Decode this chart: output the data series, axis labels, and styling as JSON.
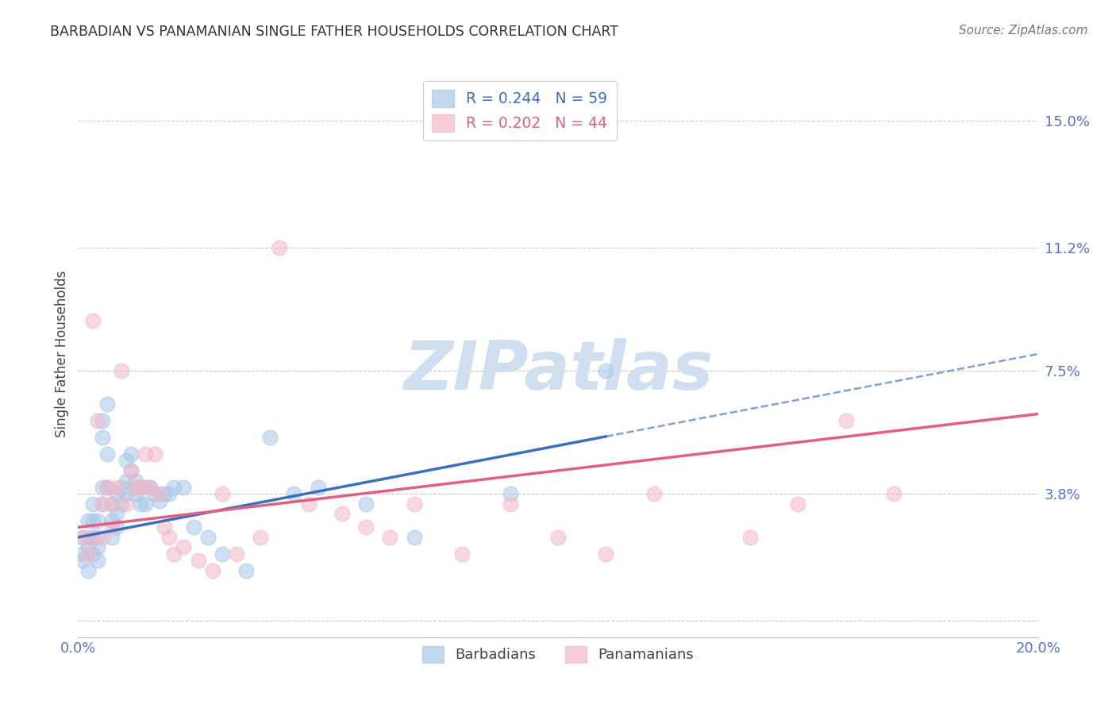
{
  "title": "BARBADIAN VS PANAMANIAN SINGLE FATHER HOUSEHOLDS CORRELATION CHART",
  "source": "Source: ZipAtlas.com",
  "ylabel": "Single Father Households",
  "xlim": [
    0.0,
    0.2
  ],
  "ylim": [
    -0.005,
    0.165
  ],
  "yticks": [
    0.0,
    0.038,
    0.075,
    0.112,
    0.15
  ],
  "ytick_labels": [
    "",
    "3.8%",
    "7.5%",
    "11.2%",
    "15.0%"
  ],
  "xticks": [
    0.0,
    0.05,
    0.1,
    0.15,
    0.2
  ],
  "xtick_labels": [
    "0.0%",
    "",
    "",
    "",
    "20.0%"
  ],
  "barbadian_R": 0.244,
  "barbadian_N": 59,
  "panamanian_R": 0.202,
  "panamanian_N": 44,
  "barbadian_color": "#a8c8e8",
  "panamanian_color": "#f4b8c8",
  "trendline_barbadian_color": "#3a6fbc",
  "trendline_panamanian_color": "#e06080",
  "watermark_color": "#d0dff0",
  "background_color": "#ffffff",
  "grid_color": "#c8c8c8",
  "axis_label_color": "#5575cc",
  "title_color": "#333333",
  "barbadian_x": [
    0.001,
    0.001,
    0.001,
    0.002,
    0.002,
    0.002,
    0.002,
    0.003,
    0.003,
    0.003,
    0.003,
    0.004,
    0.004,
    0.004,
    0.004,
    0.005,
    0.005,
    0.005,
    0.005,
    0.006,
    0.006,
    0.006,
    0.007,
    0.007,
    0.007,
    0.008,
    0.008,
    0.008,
    0.009,
    0.009,
    0.01,
    0.01,
    0.01,
    0.011,
    0.011,
    0.012,
    0.012,
    0.013,
    0.013,
    0.014,
    0.014,
    0.015,
    0.016,
    0.017,
    0.018,
    0.019,
    0.02,
    0.022,
    0.024,
    0.027,
    0.03,
    0.035,
    0.04,
    0.045,
    0.05,
    0.06,
    0.07,
    0.09,
    0.11
  ],
  "barbadian_y": [
    0.025,
    0.02,
    0.018,
    0.03,
    0.025,
    0.022,
    0.015,
    0.035,
    0.03,
    0.025,
    0.02,
    0.03,
    0.025,
    0.022,
    0.018,
    0.06,
    0.055,
    0.04,
    0.035,
    0.065,
    0.05,
    0.04,
    0.035,
    0.03,
    0.025,
    0.038,
    0.032,
    0.028,
    0.04,
    0.035,
    0.048,
    0.042,
    0.038,
    0.05,
    0.045,
    0.042,
    0.038,
    0.04,
    0.035,
    0.04,
    0.035,
    0.04,
    0.038,
    0.036,
    0.038,
    0.038,
    0.04,
    0.04,
    0.028,
    0.025,
    0.02,
    0.015,
    0.055,
    0.038,
    0.04,
    0.035,
    0.025,
    0.038,
    0.075
  ],
  "panamanian_x": [
    0.001,
    0.002,
    0.003,
    0.003,
    0.004,
    0.005,
    0.005,
    0.006,
    0.007,
    0.007,
    0.008,
    0.009,
    0.01,
    0.011,
    0.012,
    0.013,
    0.014,
    0.015,
    0.016,
    0.017,
    0.018,
    0.019,
    0.02,
    0.022,
    0.025,
    0.028,
    0.03,
    0.033,
    0.038,
    0.042,
    0.048,
    0.055,
    0.06,
    0.065,
    0.07,
    0.08,
    0.09,
    0.1,
    0.11,
    0.12,
    0.14,
    0.15,
    0.16,
    0.17
  ],
  "panamanian_y": [
    0.025,
    0.02,
    0.09,
    0.025,
    0.06,
    0.035,
    0.025,
    0.04,
    0.035,
    0.028,
    0.04,
    0.075,
    0.035,
    0.045,
    0.04,
    0.04,
    0.05,
    0.04,
    0.05,
    0.038,
    0.028,
    0.025,
    0.02,
    0.022,
    0.018,
    0.015,
    0.038,
    0.02,
    0.025,
    0.112,
    0.035,
    0.032,
    0.028,
    0.025,
    0.035,
    0.02,
    0.035,
    0.025,
    0.02,
    0.038,
    0.025,
    0.035,
    0.06,
    0.038
  ],
  "trendline_barb_x0": 0.0,
  "trendline_barb_x1": 0.2,
  "trendline_barb_y0": 0.025,
  "trendline_barb_y1": 0.08,
  "trendline_barb_solid_end": 0.11,
  "trendline_pana_x0": 0.0,
  "trendline_pana_x1": 0.2,
  "trendline_pana_y0": 0.028,
  "trendline_pana_y1": 0.062
}
